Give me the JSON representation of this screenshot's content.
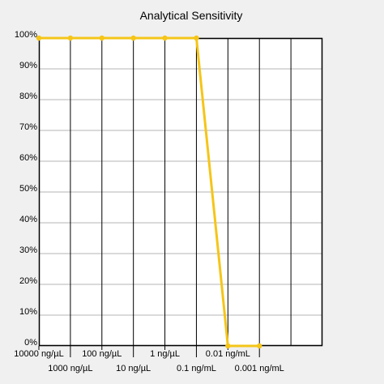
{
  "chart_data": {
    "type": "line",
    "title": "Analytical Sensitivity",
    "xlabel": "",
    "ylabel": "",
    "categories": [
      "10000 ng/µL",
      "1000 ng/µL",
      "100 ng/µL",
      "10 ng/µL",
      "1 ng/µL",
      "0.1 ng/mL",
      "0.01 ng/mL",
      "0.001 ng/mL"
    ],
    "y_ticks": [
      "0%",
      "10%",
      "20%",
      "30%",
      "40%",
      "50%",
      "60%",
      "70%",
      "80%",
      "90%",
      "100%"
    ],
    "ylim": [
      0,
      100
    ],
    "grid": true,
    "legend": "none",
    "series": [
      {
        "x": [
          0,
          1,
          2,
          3,
          4,
          5,
          6,
          7
        ],
        "values": [
          100,
          100,
          100,
          100,
          100,
          100,
          0,
          0
        ],
        "color": "#f5c518"
      }
    ],
    "colors": {
      "background": "#f0f0f0",
      "plot_background": "#ffffff",
      "hgrid": "#b4b4b4",
      "vgrid": "#000000",
      "border": "#000000"
    }
  }
}
